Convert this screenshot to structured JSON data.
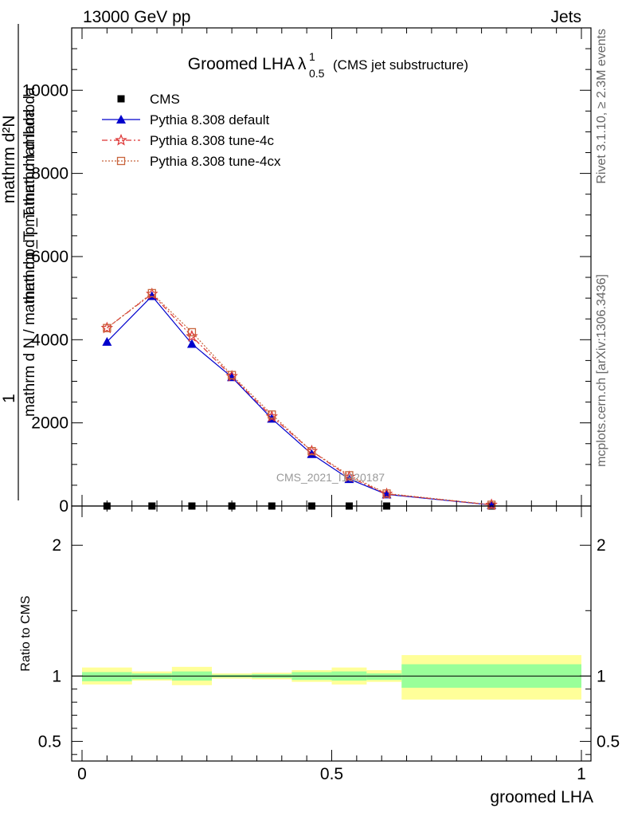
{
  "header": {
    "left": "13000 GeV pp",
    "right": "Jets"
  },
  "side_labels": {
    "rivet": "Rivet 3.1.10, ≥ 2.3M events",
    "mcplots": "mcplots.cern.ch [arXiv:1306.3436]"
  },
  "watermark": "CMS_2021_I1920187",
  "chart_data": [
    {
      "type": "line",
      "title_main": "Groomed LHA",
      "title_lambda": "λ",
      "title_sup": "1",
      "title_sub": "0.5",
      "title_note": "(CMS jet substructure)",
      "ylabel_numerator": "1",
      "ylabel_denominator": "mathrm d N / mathrm d p_T mathrm d lambda",
      "ylabel_top": "mathrm d²N",
      "ylabel_top_note": "mathrm d p_T mathrm d lambda",
      "xlim": [
        0,
        1
      ],
      "ylim": [
        0,
        11500
      ],
      "yticks": [
        0,
        2000,
        4000,
        6000,
        8000,
        10000
      ],
      "ytick_labels": [
        "0",
        "2000",
        "4000",
        "6000",
        "8000",
        "10000"
      ],
      "x": [
        0.05,
        0.14,
        0.22,
        0.3,
        0.38,
        0.46,
        0.535,
        0.61,
        0.82
      ],
      "series": [
        {
          "name": "CMS",
          "color": "#000000",
          "marker": "square",
          "values": [
            0,
            0,
            0,
            0,
            0,
            0,
            0,
            0,
            0
          ]
        },
        {
          "name": "Pythia 8.308 default",
          "color": "#0000cc",
          "marker": "triangle",
          "values": [
            3950,
            5050,
            3900,
            3100,
            2100,
            1250,
            650,
            280,
            25
          ]
        },
        {
          "name": "Pythia 8.308 tune-4c",
          "color": "#dd3333",
          "marker": "star",
          "values": [
            4280,
            5100,
            4080,
            3120,
            2150,
            1320,
            700,
            290,
            28
          ]
        },
        {
          "name": "Pythia 8.308 tune-4cx",
          "color": "#c8643c",
          "marker": "open-square",
          "values": [
            4280,
            5120,
            4180,
            3150,
            2200,
            1320,
            740,
            300,
            30
          ]
        }
      ]
    },
    {
      "type": "area",
      "ylabel": "Ratio to CMS",
      "xlabel": "groomed LHA",
      "xlim": [
        0,
        1
      ],
      "ylim": [
        0.35,
        2.3
      ],
      "yticks": [
        0.5,
        1,
        2
      ],
      "ytick_labels": [
        "0.5",
        "1",
        "2"
      ],
      "xticks": [
        0,
        0.5,
        1
      ],
      "xtick_labels": [
        "0",
        "0.5",
        "1"
      ],
      "bins": [
        {
          "x0": 0.0,
          "x1": 0.1,
          "inner": [
            0.96,
            1.03
          ],
          "outer": [
            0.935,
            1.065
          ]
        },
        {
          "x0": 0.1,
          "x1": 0.18,
          "inner": [
            0.975,
            1.02
          ],
          "outer": [
            0.965,
            1.035
          ]
        },
        {
          "x0": 0.18,
          "x1": 0.26,
          "inner": [
            0.965,
            1.035
          ],
          "outer": [
            0.93,
            1.07
          ]
        },
        {
          "x0": 0.26,
          "x1": 0.34,
          "inner": [
            0.99,
            1.01
          ],
          "outer": [
            0.98,
            1.02
          ]
        },
        {
          "x0": 0.34,
          "x1": 0.42,
          "inner": [
            0.985,
            1.015
          ],
          "outer": [
            0.975,
            1.025
          ]
        },
        {
          "x0": 0.42,
          "x1": 0.5,
          "inner": [
            0.97,
            1.03
          ],
          "outer": [
            0.955,
            1.045
          ]
        },
        {
          "x0": 0.5,
          "x1": 0.57,
          "inner": [
            0.965,
            1.035
          ],
          "outer": [
            0.935,
            1.065
          ]
        },
        {
          "x0": 0.57,
          "x1": 0.64,
          "inner": [
            0.97,
            1.02
          ],
          "outer": [
            0.955,
            1.045
          ]
        },
        {
          "x0": 0.64,
          "x1": 1.0,
          "inner": [
            0.91,
            1.09
          ],
          "outer": [
            0.82,
            1.16
          ]
        }
      ],
      "colors": {
        "inner": "#99ff99",
        "outer": "#ffff99",
        "reference": "#000000"
      }
    }
  ]
}
